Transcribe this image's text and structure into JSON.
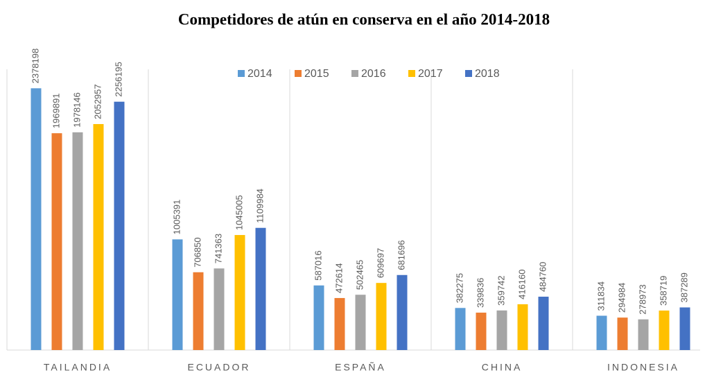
{
  "chart_data": {
    "type": "bar",
    "title": "Competidores de atún en conserva en el año 2014-2018",
    "categories": [
      "TAILANDIA",
      "ECUADOR",
      "ESPAÑA",
      "CHINA",
      "INDONESIA"
    ],
    "series": [
      {
        "name": "2014",
        "color": "#5b9bd5",
        "values": [
          2378198,
          1005391,
          587016,
          382275,
          311834
        ]
      },
      {
        "name": "2015",
        "color": "#ed7d31",
        "values": [
          1969891,
          706850,
          472614,
          339836,
          294984
        ]
      },
      {
        "name": "2016",
        "color": "#a5a5a5",
        "values": [
          1978146,
          741363,
          502465,
          359742,
          278973
        ]
      },
      {
        "name": "2017",
        "color": "#ffc000",
        "values": [
          2052957,
          1045005,
          609697,
          416160,
          358719
        ]
      },
      {
        "name": "2018",
        "color": "#4472c4",
        "values": [
          2256195,
          1109984,
          681696,
          484760,
          387289
        ]
      }
    ],
    "ylim": [
      0,
      2500000
    ],
    "legend": "top"
  }
}
